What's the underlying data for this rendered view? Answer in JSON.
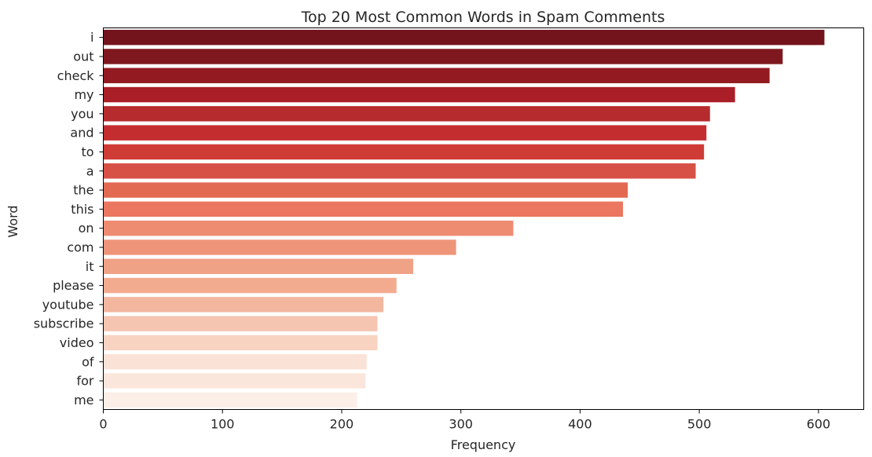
{
  "chart_data": {
    "type": "bar",
    "orientation": "horizontal",
    "title": "Top 20 Most Common Words in Spam Comments",
    "xlabel": "Frequency",
    "ylabel": "Word",
    "xlim": [
      0,
      638
    ],
    "xticks": [
      0,
      100,
      200,
      300,
      400,
      500,
      600
    ],
    "grid": false,
    "categories": [
      "i",
      "out",
      "check",
      "my",
      "you",
      "and",
      "to",
      "a",
      "the",
      "this",
      "on",
      "com",
      "it",
      "please",
      "youtube",
      "subscribe",
      "video",
      "of",
      "for",
      "me"
    ],
    "values": [
      605,
      570,
      559,
      530,
      509,
      506,
      504,
      497,
      440,
      436,
      344,
      296,
      260,
      246,
      235,
      230,
      230,
      221,
      220,
      213
    ],
    "colors": [
      "#73141c",
      "#7f181e",
      "#931a21",
      "#a91e27",
      "#b62b2d",
      "#c42d30",
      "#cf3b35",
      "#d85147",
      "#e26a53",
      "#eb7760",
      "#ee8c72",
      "#ee9579",
      "#f0a286",
      "#f3ab90",
      "#f3b7a0",
      "#f5c5b2",
      "#f8d3c2",
      "#fbe2d7",
      "#fbe6dc",
      "#fcefe8"
    ]
  }
}
